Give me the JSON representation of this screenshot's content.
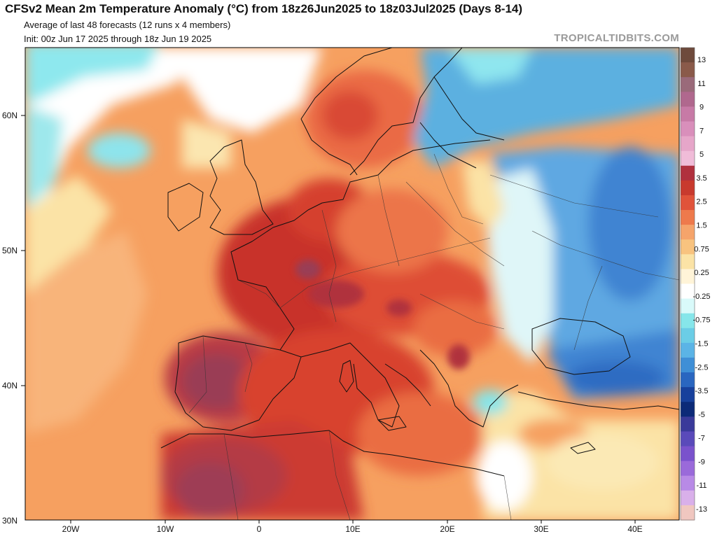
{
  "header": {
    "title": "CFSv2 Mean 2m Temperature Anomaly (°C) from 18z26Jun2025 to 18z03Jul2025 (Days 8-14)",
    "subtitle1": "Average of last 48 forecasts (12 runs x 4 members)",
    "subtitle2": "Init: 00z Jun 17 2025 through 18z Jun 19 2025",
    "brand": "TROPICALTIDBITS.COM"
  },
  "axes": {
    "lat_labels": [
      "60N",
      "50N",
      "40N",
      "30N"
    ],
    "lon_labels": [
      "20W",
      "10W",
      "0",
      "10E",
      "20E",
      "30E",
      "40E"
    ]
  },
  "legend": {
    "labels": [
      "13",
      "11",
      "9",
      "7",
      "5",
      "3.5",
      "2.5",
      "1.5",
      "0.75",
      "0.25",
      "-0.25",
      "-0.75",
      "-1.5",
      "-2.5",
      "-3.5",
      "-5",
      "-7",
      "-9",
      "-11",
      "-13"
    ],
    "colors": [
      "#6e4a3c",
      "#8a5a4a",
      "#9a6a7a",
      "#b0688e",
      "#c77aa6",
      "#d98fbb",
      "#e6a6c9",
      "#f0bcd8",
      "#b0303e",
      "#c83a2e",
      "#e0533a",
      "#ee7a4c",
      "#f5a46b",
      "#f8c37f",
      "#fbe3a6",
      "#fff4d8",
      "#ffffff",
      "#d9fafa",
      "#86e6ea",
      "#6bcde6",
      "#5bb4e6",
      "#3f8fd6",
      "#2a66c0",
      "#17409c",
      "#0c2a78",
      "#3a3a9a",
      "#5a4aba",
      "#7a52cc",
      "#9a6ada",
      "#b88ae6",
      "#d9b0ea",
      "#f0c7c0"
    ]
  },
  "map": {
    "region": "Europe / North Africa",
    "lat_range": [
      30,
      65
    ],
    "lon_range": [
      -25,
      45
    ]
  }
}
